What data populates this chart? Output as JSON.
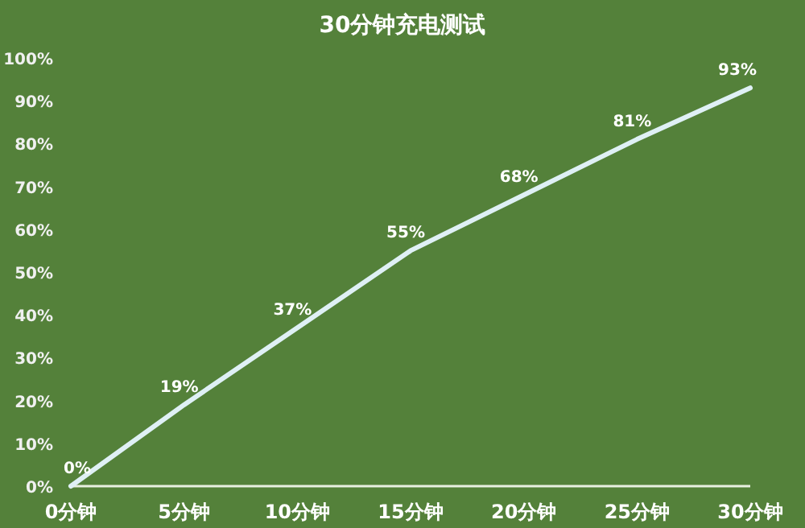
{
  "chart_data": {
    "type": "line",
    "title": "30分钟充电测试",
    "categories": [
      "0分钟",
      "5分钟",
      "10分钟",
      "15分钟",
      "20分钟",
      "25分钟",
      "30分钟"
    ],
    "values": [
      0,
      19,
      37,
      55,
      68,
      81,
      93
    ],
    "color": "#dff0f5",
    "ylim": [
      0,
      100
    ],
    "yticks": [
      {
        "value": 0,
        "label": "0%"
      },
      {
        "value": 10,
        "label": "10%"
      },
      {
        "value": 20,
        "label": "20%"
      },
      {
        "value": 30,
        "label": "30%"
      },
      {
        "value": 40,
        "label": "40%"
      },
      {
        "value": 50,
        "label": "50%"
      },
      {
        "value": 60,
        "label": "60%"
      },
      {
        "value": 70,
        "label": "70%"
      },
      {
        "value": 80,
        "label": "80%"
      },
      {
        "value": 90,
        "label": "90%"
      },
      {
        "value": 100,
        "label": "100%"
      }
    ],
    "value_labels": [
      "0%",
      "19%",
      "37%",
      "55%",
      "68%",
      "81%",
      "93%"
    ],
    "grid": false,
    "marker": "none",
    "line_style": "solid"
  }
}
